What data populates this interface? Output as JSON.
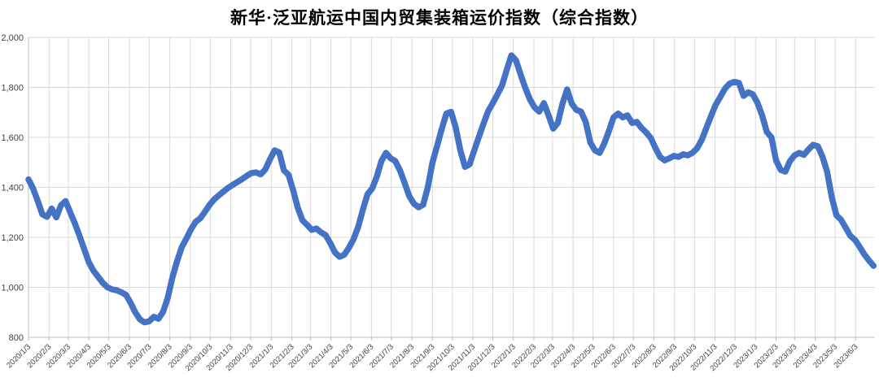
{
  "title": "新华·泛亚航运中国内贸集装箱运价指数（综合指数）",
  "chart_data": {
    "type": "line",
    "title": "新华·泛亚航运中国内贸集装箱运价指数（综合指数）",
    "grid": true,
    "legend": "none",
    "line_color": "#4472C4",
    "gridline_color": "#D9D9D9",
    "axis_color": "#BFBFBF",
    "tick_label_color": "#404040",
    "y_axis": {
      "min": 800,
      "max": 2000,
      "step": 200,
      "tick_values": [
        800,
        1000,
        1200,
        1400,
        1600,
        1800,
        2000
      ],
      "tick_labels": [
        "800",
        "1,000",
        "1,200",
        "1,400",
        "1,600",
        "1,800",
        "2,000"
      ]
    },
    "x_axis": {
      "tick_labels": [
        "2020/1/3",
        "2020/2/3",
        "2020/3/3",
        "2020/4/3",
        "2020/5/3",
        "2020/6/3",
        "2020/7/3",
        "2020/8/3",
        "2020/9/3",
        "2020/10/3",
        "2020/11/3",
        "2020/12/3",
        "2021/1/3",
        "2021/2/3",
        "2021/3/3",
        "2021/4/3",
        "2021/5/3",
        "2021/6/3",
        "2021/7/3",
        "2021/8/3",
        "2021/9/3",
        "2021/10/3",
        "2021/11/3",
        "2021/12/3",
        "2022/1/3",
        "2022/2/3",
        "2022/3/3",
        "2022/4/3",
        "2022/5/3",
        "2022/6/3",
        "2022/7/3",
        "2022/8/3",
        "2022/9/3",
        "2022/10/3",
        "2022/11/3",
        "2022/12/3",
        "2023/1/3",
        "2023/2/3",
        "2023/3/3",
        "2023/4/3",
        "2023/5/3",
        "2023/6/3"
      ]
    },
    "series": [
      {
        "start_date": "2020/1/3",
        "interval_days": 7,
        "values": [
          1432,
          1395,
          1345,
          1292,
          1282,
          1315,
          1280,
          1328,
          1345,
          1300,
          1256,
          1205,
          1152,
          1100,
          1066,
          1042,
          1018,
          1000,
          992,
          988,
          980,
          970,
          938,
          900,
          872,
          860,
          864,
          882,
          874,
          902,
          958,
          1040,
          1105,
          1160,
          1195,
          1232,
          1262,
          1276,
          1302,
          1330,
          1352,
          1368,
          1383,
          1398,
          1410,
          1421,
          1433,
          1446,
          1457,
          1460,
          1452,
          1472,
          1512,
          1548,
          1540,
          1468,
          1450,
          1388,
          1318,
          1268,
          1250,
          1230,
          1235,
          1220,
          1209,
          1177,
          1140,
          1122,
          1130,
          1158,
          1192,
          1242,
          1310,
          1372,
          1395,
          1442,
          1505,
          1538,
          1516,
          1505,
          1468,
          1418,
          1365,
          1335,
          1320,
          1330,
          1400,
          1498,
          1565,
          1633,
          1695,
          1702,
          1640,
          1548,
          1482,
          1492,
          1548,
          1602,
          1655,
          1705,
          1737,
          1772,
          1808,
          1870,
          1928,
          1908,
          1851,
          1798,
          1752,
          1720,
          1703,
          1737,
          1688,
          1635,
          1658,
          1735,
          1792,
          1735,
          1710,
          1703,
          1662,
          1580,
          1548,
          1538,
          1575,
          1625,
          1680,
          1695,
          1680,
          1688,
          1658,
          1662,
          1638,
          1620,
          1598,
          1558,
          1522,
          1508,
          1516,
          1526,
          1522,
          1532,
          1528,
          1538,
          1556,
          1590,
          1638,
          1685,
          1730,
          1762,
          1795,
          1815,
          1822,
          1818,
          1766,
          1780,
          1772,
          1738,
          1688,
          1622,
          1600,
          1508,
          1470,
          1463,
          1505,
          1528,
          1538,
          1530,
          1552,
          1570,
          1565,
          1522,
          1462,
          1360,
          1288,
          1270,
          1238,
          1206,
          1190,
          1162,
          1132,
          1108,
          1086
        ]
      }
    ]
  }
}
